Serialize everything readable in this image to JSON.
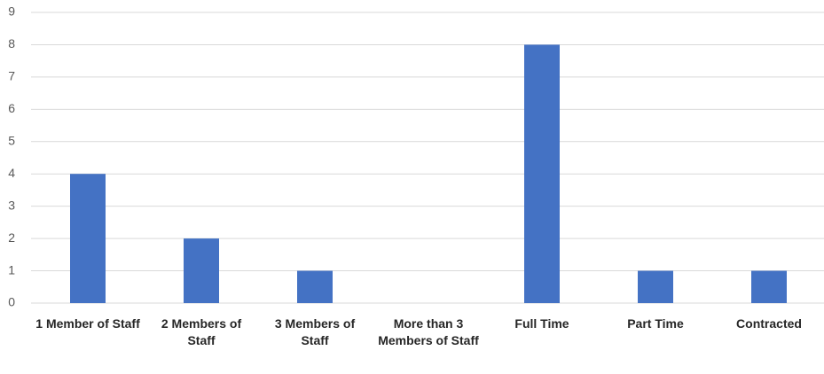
{
  "chart_data": {
    "type": "bar",
    "categories": [
      "1 Member of Staff",
      "2 Members of Staff",
      "3 Members of Staff",
      "More than 3 Members of Staff",
      "Full Time",
      "Part Time",
      "Contracted"
    ],
    "values": [
      4,
      2,
      1,
      0,
      8,
      1,
      1
    ],
    "color": "#4472c4",
    "ylim": [
      0,
      9
    ],
    "yticks": [
      0,
      1,
      2,
      3,
      4,
      5,
      6,
      7,
      8,
      9
    ],
    "grid": true
  }
}
